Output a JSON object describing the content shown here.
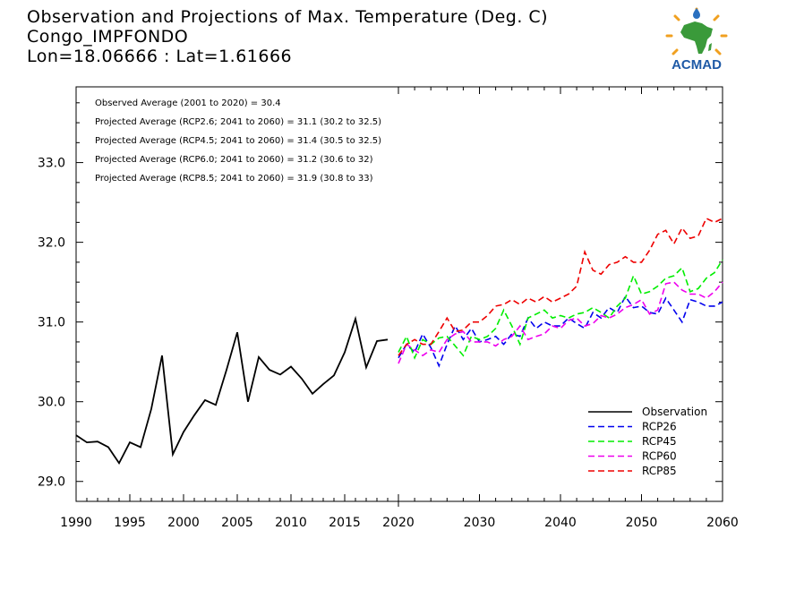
{
  "header": {
    "line1": "Observation and Projections of Max. Temperature (Deg. C)",
    "line2": "Congo_IMPFONDO",
    "line3": "Lon=18.06666 : Lat=1.61666"
  },
  "logo": {
    "text": "ACMAD"
  },
  "annotations": [
    "Observed Average (2001 to 2020) = 30.4",
    "Projected Average (RCP2.6; 2041 to 2060) = 31.1 (30.2 to 32.5)",
    "Projected Average (RCP4.5; 2041 to 2060) = 31.4 (30.5 to 32.5)",
    "Projected Average (RCP6.0; 2041 to 2060) = 31.2 (30.6 to 32)",
    "Projected Average (RCP8.5; 2041 to 2060) = 31.9 (30.8 to 33)"
  ],
  "chart_data": {
    "type": "line",
    "title": "Observation and Projections of Max. Temperature (Deg. C)",
    "xlim": [
      1990,
      2060
    ],
    "ylim": [
      28.75,
      33.95
    ],
    "x_ticks_hist": [
      1990,
      1995,
      2000,
      2005,
      2010,
      2015,
      2020
    ],
    "x_ticks_proj": [
      2020,
      2030,
      2040,
      2050,
      2060
    ],
    "y_ticks": [
      29.0,
      30.0,
      31.0,
      32.0,
      33.0
    ],
    "y_tick_labels": [
      "29.0",
      "30.0",
      "31.0",
      "32.0",
      "33.0"
    ],
    "legend_position": "bottom-right",
    "series": [
      {
        "name": "Observation",
        "color": "#000000",
        "dashed": false,
        "x": [
          1990,
          1991,
          1992,
          1993,
          1994,
          1995,
          1996,
          1997,
          1998,
          1999,
          2000,
          2001,
          2002,
          2003,
          2004,
          2005,
          2006,
          2007,
          2008,
          2009,
          2010,
          2011,
          2012,
          2013,
          2014,
          2015,
          2016,
          2017,
          2018,
          2019
        ],
        "y": [
          29.58,
          29.49,
          29.5,
          29.43,
          29.23,
          29.49,
          29.43,
          29.91,
          30.58,
          29.34,
          29.62,
          29.83,
          30.02,
          29.96,
          30.4,
          30.87,
          30.0,
          30.56,
          30.4,
          30.34,
          30.44,
          30.29,
          30.1,
          30.22,
          30.33,
          30.62,
          31.04,
          30.43,
          30.76,
          30.78
        ]
      },
      {
        "name": "RCP26",
        "color": "#0000ee",
        "dashed": true,
        "x": [
          2020,
          2021,
          2022,
          2023,
          2024,
          2025,
          2026,
          2027,
          2028,
          2029,
          2030,
          2031,
          2032,
          2033,
          2034,
          2035,
          2036,
          2037,
          2038,
          2039,
          2040,
          2041,
          2042,
          2043,
          2044,
          2045,
          2046,
          2047,
          2048,
          2049,
          2050,
          2051,
          2052,
          2053,
          2054,
          2055,
          2056,
          2057,
          2058,
          2059,
          2060
        ],
        "y": [
          30.55,
          30.72,
          30.62,
          30.85,
          30.68,
          30.45,
          30.72,
          30.95,
          30.78,
          30.92,
          30.75,
          30.78,
          30.82,
          30.72,
          30.85,
          30.82,
          31.05,
          30.92,
          31.0,
          30.95,
          30.95,
          31.05,
          30.98,
          30.92,
          31.12,
          31.05,
          31.18,
          31.12,
          31.32,
          31.18,
          31.2,
          31.12,
          31.1,
          31.3,
          31.15,
          31.0,
          31.28,
          31.25,
          31.2,
          31.2,
          31.25
        ]
      },
      {
        "name": "RCP45",
        "color": "#00ee00",
        "dashed": true,
        "x": [
          2020,
          2021,
          2022,
          2023,
          2024,
          2025,
          2026,
          2027,
          2028,
          2029,
          2030,
          2031,
          2032,
          2033,
          2034,
          2035,
          2036,
          2037,
          2038,
          2039,
          2040,
          2041,
          2042,
          2043,
          2044,
          2045,
          2046,
          2047,
          2048,
          2049,
          2050,
          2051,
          2052,
          2053,
          2054,
          2055,
          2056,
          2057,
          2058,
          2059,
          2060
        ],
        "y": [
          30.62,
          30.82,
          30.55,
          30.78,
          30.72,
          30.8,
          30.82,
          30.7,
          30.58,
          30.82,
          30.78,
          30.82,
          30.92,
          31.15,
          30.95,
          30.72,
          31.05,
          31.1,
          31.15,
          31.05,
          31.08,
          31.05,
          31.1,
          31.12,
          31.18,
          31.12,
          31.05,
          31.2,
          31.3,
          31.58,
          31.35,
          31.38,
          31.45,
          31.55,
          31.58,
          31.68,
          31.38,
          31.42,
          31.55,
          31.62,
          31.78
        ]
      },
      {
        "name": "RCP60",
        "color": "#ee00ee",
        "dashed": true,
        "x": [
          2020,
          2021,
          2022,
          2023,
          2024,
          2025,
          2026,
          2027,
          2028,
          2029,
          2030,
          2031,
          2032,
          2033,
          2034,
          2035,
          2036,
          2037,
          2038,
          2039,
          2040,
          2041,
          2042,
          2043,
          2044,
          2045,
          2046,
          2047,
          2048,
          2049,
          2050,
          2051,
          2052,
          2053,
          2054,
          2055,
          2056,
          2057,
          2058,
          2059,
          2060
        ],
        "y": [
          30.48,
          30.72,
          30.65,
          30.58,
          30.65,
          30.62,
          30.78,
          30.85,
          30.88,
          30.75,
          30.75,
          30.75,
          30.7,
          30.78,
          30.82,
          30.95,
          30.78,
          30.82,
          30.85,
          30.95,
          30.92,
          31.02,
          31.05,
          30.95,
          30.98,
          31.08,
          31.05,
          31.1,
          31.18,
          31.22,
          31.28,
          31.1,
          31.15,
          31.48,
          31.5,
          31.4,
          31.35,
          31.35,
          31.3,
          31.38,
          31.5
        ]
      },
      {
        "name": "RCP85",
        "color": "#ee0000",
        "dashed": true,
        "x": [
          2020,
          2021,
          2022,
          2023,
          2024,
          2025,
          2026,
          2027,
          2028,
          2029,
          2030,
          2031,
          2032,
          2033,
          2034,
          2035,
          2036,
          2037,
          2038,
          2039,
          2040,
          2041,
          2042,
          2043,
          2044,
          2045,
          2046,
          2047,
          2048,
          2049,
          2050,
          2051,
          2052,
          2053,
          2054,
          2055,
          2056,
          2057,
          2058,
          2059,
          2060
        ],
        "y": [
          30.58,
          30.72,
          30.78,
          30.72,
          30.72,
          30.88,
          31.05,
          30.88,
          30.9,
          31.0,
          31.0,
          31.08,
          31.2,
          31.22,
          31.28,
          31.22,
          31.3,
          31.25,
          31.32,
          31.25,
          31.3,
          31.35,
          31.45,
          31.88,
          31.65,
          31.6,
          31.72,
          31.75,
          31.82,
          31.75,
          31.75,
          31.9,
          32.1,
          32.15,
          31.98,
          32.18,
          32.05,
          32.08,
          32.3,
          32.25,
          32.3
        ]
      }
    ]
  }
}
